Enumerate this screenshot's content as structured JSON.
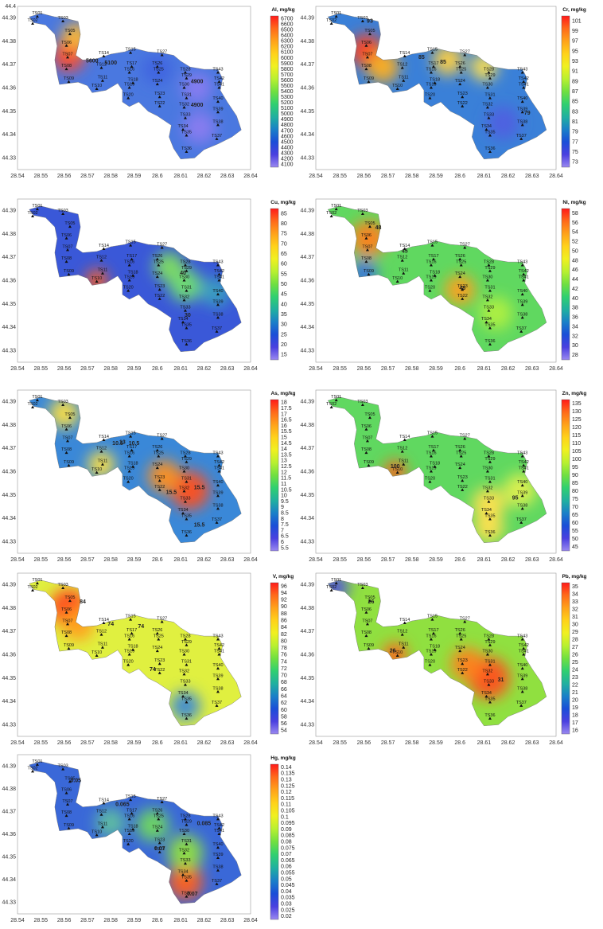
{
  "axes": {
    "x_ticks": [
      "28.54",
      "28.55",
      "28.56",
      "28.57",
      "28.58",
      "28.59",
      "28.6",
      "28.61",
      "28.62",
      "28.63",
      "28.64"
    ],
    "y_ticks": [
      "44.39",
      "44.38",
      "44.37",
      "44.36",
      "44.35",
      "44.34",
      "44.33"
    ],
    "y_top_label": "44.4"
  },
  "sites": [
    {
      "id": "TS01",
      "lon": 28.5485,
      "lat": 44.3905
    },
    {
      "id": "TS02",
      "lon": 28.5465,
      "lat": 44.3875
    },
    {
      "id": "TS03",
      "lon": 28.5595,
      "lat": 44.3885
    },
    {
      "id": "TS05",
      "lon": 28.5625,
      "lat": 44.383
    },
    {
      "id": "TS06",
      "lon": 28.561,
      "lat": 44.378
    },
    {
      "id": "TS07",
      "lon": 28.5615,
      "lat": 44.373
    },
    {
      "id": "TS08",
      "lon": 28.561,
      "lat": 44.368
    },
    {
      "id": "TS09",
      "lon": 28.562,
      "lat": 44.3625
    },
    {
      "id": "TS10",
      "lon": 28.574,
      "lat": 44.3595
    },
    {
      "id": "TS11",
      "lon": 28.5765,
      "lat": 44.363
    },
    {
      "id": "TS12",
      "lon": 28.576,
      "lat": 44.3685
    },
    {
      "id": "TS14",
      "lon": 28.577,
      "lat": 44.3735
    },
    {
      "id": "TS15",
      "lon": 28.5885,
      "lat": 44.375
    },
    {
      "id": "TS16",
      "lon": 28.588,
      "lat": 44.3665
    },
    {
      "id": "TS17",
      "lon": 28.589,
      "lat": 44.369
    },
    {
      "id": "TS18",
      "lon": 28.5895,
      "lat": 44.362
    },
    {
      "id": "TS19",
      "lon": 28.588,
      "lat": 44.36
    },
    {
      "id": "TS20",
      "lon": 28.5875,
      "lat": 44.3555
    },
    {
      "id": "TS22",
      "lon": 28.601,
      "lat": 44.352
    },
    {
      "id": "TS23",
      "lon": 28.601,
      "lat": 44.356
    },
    {
      "id": "TS24",
      "lon": 28.6,
      "lat": 44.3615
    },
    {
      "id": "TS25",
      "lon": 28.6005,
      "lat": 44.3665
    },
    {
      "id": "TS26",
      "lon": 28.6,
      "lat": 44.369
    },
    {
      "id": "TS27",
      "lon": 28.602,
      "lat": 44.374
    },
    {
      "id": "TS28",
      "lon": 28.612,
      "lat": 44.3665
    },
    {
      "id": "TS29",
      "lon": 28.6125,
      "lat": 44.364
    },
    {
      "id": "TS30",
      "lon": 28.6115,
      "lat": 44.36
    },
    {
      "id": "TS31",
      "lon": 28.6125,
      "lat": 44.3555
    },
    {
      "id": "TS32",
      "lon": 28.6115,
      "lat": 44.3515
    },
    {
      "id": "TS33",
      "lon": 28.612,
      "lat": 44.347
    },
    {
      "id": "TS34",
      "lon": 28.611,
      "lat": 44.342
    },
    {
      "id": "TS35",
      "lon": 28.6125,
      "lat": 44.3395
    },
    {
      "id": "TS36",
      "lon": 28.6125,
      "lat": 44.3325
    },
    {
      "id": "TS37",
      "lon": 28.6255,
      "lat": 44.338
    },
    {
      "id": "TS38",
      "lon": 28.626,
      "lat": 44.344
    },
    {
      "id": "TS39",
      "lon": 28.626,
      "lat": 44.3495
    },
    {
      "id": "TS40",
      "lon": 28.626,
      "lat": 44.354
    },
    {
      "id": "TS41",
      "lon": 28.6265,
      "lat": 44.36
    },
    {
      "id": "TS42",
      "lon": 28.6265,
      "lat": 44.3625
    },
    {
      "id": "TS43",
      "lon": 28.626,
      "lat": 44.3665
    }
  ],
  "maps": [
    {
      "key": "al",
      "title": "Al, mg/kg",
      "legend": [
        "6700",
        "6600",
        "6500",
        "6400",
        "6300",
        "6200",
        "6100",
        "6000",
        "5900",
        "5800",
        "5700",
        "5600",
        "5500",
        "5400",
        "5300",
        "5200",
        "5100",
        "5000",
        "4900",
        "4800",
        "4700",
        "4600",
        "4500",
        "4400",
        "4300",
        "4200",
        "4100"
      ],
      "contours": [
        {
          "t": "5600",
          "lon": 28.572,
          "lat": 44.371
        },
        {
          "t": "5100",
          "lon": 28.58,
          "lat": 44.37
        },
        {
          "t": "4900",
          "lon": 28.617,
          "lat": 44.362
        },
        {
          "t": "4900",
          "lon": 28.617,
          "lat": 44.352
        }
      ],
      "hotspots": [
        {
          "lon": 28.562,
          "lat": 44.374,
          "r": 0.3,
          "c": "#ff4a2a"
        },
        {
          "lon": 28.565,
          "lat": 44.382,
          "r": 0.22,
          "c": "#ffb830"
        },
        {
          "lon": 28.617,
          "lat": 44.36,
          "r": 0.25,
          "c": "#8a7cf0"
        },
        {
          "lon": 28.618,
          "lat": 44.343,
          "r": 0.3,
          "c": "#8a7cf0"
        },
        {
          "lon": 28.6,
          "lat": 44.368,
          "r": 0.25,
          "c": "#3f63e0"
        }
      ],
      "base": "#4a78e0"
    },
    {
      "key": "cr",
      "title": "Cr, mg/kg",
      "legend": [
        "101",
        "99",
        "97",
        "95",
        "93",
        "91",
        "89",
        "87",
        "85",
        "83",
        "81",
        "79",
        "77",
        "75",
        "73"
      ],
      "contours": [
        {
          "t": "93",
          "lon": 28.5625,
          "lat": 44.388
        },
        {
          "t": "85",
          "lon": 28.584,
          "lat": 44.3725
        },
        {
          "t": "85",
          "lon": 28.593,
          "lat": 44.3705
        },
        {
          "t": "79",
          "lon": 28.628,
          "lat": 44.3485
        }
      ],
      "hotspots": [
        {
          "lon": 28.561,
          "lat": 44.376,
          "r": 0.3,
          "c": "#ff4020"
        },
        {
          "lon": 28.568,
          "lat": 44.369,
          "r": 0.28,
          "c": "#ffb020"
        },
        {
          "lon": 28.595,
          "lat": 44.372,
          "r": 0.25,
          "c": "#ffd040"
        },
        {
          "lon": 28.61,
          "lat": 44.369,
          "r": 0.2,
          "c": "#ffe050"
        },
        {
          "lon": 28.618,
          "lat": 44.345,
          "r": 0.3,
          "c": "#5060e0"
        }
      ],
      "base": "#3a80d8"
    },
    {
      "key": "cu",
      "title": "Cu, mg/kg",
      "legend": [
        "85",
        "80",
        "75",
        "70",
        "65",
        "60",
        "55",
        "50",
        "45",
        "40",
        "35",
        "30",
        "25",
        "20",
        "15"
      ],
      "contours": [
        {
          "t": "40",
          "lon": 28.611,
          "lat": 44.3625
        },
        {
          "t": "30",
          "lon": 28.613,
          "lat": 44.3445
        }
      ],
      "hotspots": [
        {
          "lon": 28.574,
          "lat": 44.36,
          "r": 0.12,
          "c": "#ff6020"
        },
        {
          "lon": 28.612,
          "lat": 44.358,
          "r": 0.3,
          "c": "#70e070"
        },
        {
          "lon": 28.605,
          "lat": 44.366,
          "r": 0.25,
          "c": "#80e060"
        },
        {
          "lon": 28.625,
          "lat": 44.355,
          "r": 0.25,
          "c": "#3aa0c0"
        }
      ],
      "base": "#3a58d8"
    },
    {
      "key": "ni",
      "title": "Ni, mg/kg",
      "legend": [
        "58",
        "56",
        "54",
        "52",
        "50",
        "48",
        "46",
        "44",
        "42",
        "40",
        "38",
        "36",
        "34",
        "32",
        "30",
        "28"
      ],
      "contours": [
        {
          "t": "48",
          "lon": 28.566,
          "lat": 44.382
        },
        {
          "t": "48",
          "lon": 28.601,
          "lat": 44.356
        },
        {
          "t": "45",
          "lon": 28.577,
          "lat": 44.372
        }
      ],
      "hotspots": [
        {
          "lon": 28.562,
          "lat": 44.378,
          "r": 0.35,
          "c": "#ff8020"
        },
        {
          "lon": 28.6,
          "lat": 44.356,
          "r": 0.25,
          "c": "#ffa020"
        },
        {
          "lon": 28.615,
          "lat": 44.346,
          "r": 0.3,
          "c": "#b0f040"
        },
        {
          "lon": 28.56,
          "lat": 44.363,
          "r": 0.2,
          "c": "#3a70e0"
        }
      ],
      "base": "#60d860"
    },
    {
      "key": "as",
      "title": "As, mg/kg",
      "legend": [
        "18",
        "17.5",
        "17",
        "16.5",
        "16",
        "15.5",
        "15",
        "14.5",
        "14",
        "13.5",
        "13",
        "12.5",
        "12",
        "11.5",
        "11",
        "10.5",
        "10",
        "9.5",
        "9",
        "8.5",
        "8",
        "7.5",
        "7",
        "6.5",
        "6",
        "5.5"
      ],
      "contours": [
        {
          "t": "13",
          "lon": 28.585,
          "lat": 44.372
        },
        {
          "t": "10.5",
          "lon": 28.583,
          "lat": 44.3715
        },
        {
          "t": "10.5",
          "lon": 28.59,
          "lat": 44.3715
        },
        {
          "t": "15.5",
          "lon": 28.606,
          "lat": 44.3505
        },
        {
          "t": "15.5",
          "lon": 28.618,
          "lat": 44.3525
        },
        {
          "t": "15.5",
          "lon": 28.618,
          "lat": 44.3365
        }
      ],
      "hotspots": [
        {
          "lon": 28.614,
          "lat": 44.352,
          "r": 0.4,
          "c": "#ff5020"
        },
        {
          "lon": 28.603,
          "lat": 44.358,
          "r": 0.3,
          "c": "#ff9020"
        },
        {
          "lon": 28.56,
          "lat": 44.385,
          "r": 0.25,
          "c": "#ffe040"
        },
        {
          "lon": 28.576,
          "lat": 44.363,
          "r": 0.2,
          "c": "#ffe040"
        }
      ],
      "base": "#3a88d8"
    },
    {
      "key": "zn",
      "title": "Zn, mg/kg",
      "legend": [
        "135",
        "130",
        "125",
        "120",
        "115",
        "110",
        "105",
        "100",
        "95",
        "90",
        "85",
        "80",
        "75",
        "70",
        "65",
        "60",
        "55",
        "50",
        "45"
      ],
      "contours": [
        {
          "t": "100",
          "lon": 28.573,
          "lat": 44.3615
        },
        {
          "t": "95",
          "lon": 28.623,
          "lat": 44.348
        }
      ],
      "hotspots": [
        {
          "lon": 28.573,
          "lat": 44.36,
          "r": 0.12,
          "c": "#ff6020"
        },
        {
          "lon": 28.612,
          "lat": 44.346,
          "r": 0.3,
          "c": "#ffe050"
        },
        {
          "lon": 28.625,
          "lat": 44.352,
          "r": 0.3,
          "c": "#e0f050"
        },
        {
          "lon": 28.612,
          "lat": 44.336,
          "r": 0.25,
          "c": "#ffe050"
        }
      ],
      "base": "#60d860"
    },
    {
      "key": "v",
      "title": "V, mg/kg",
      "legend": [
        "96",
        "94",
        "92",
        "90",
        "88",
        "86",
        "84",
        "82",
        "80",
        "78",
        "76",
        "74",
        "72",
        "70",
        "68",
        "66",
        "64",
        "62",
        "60",
        "58",
        "56",
        "54"
      ],
      "contours": [
        {
          "t": "84",
          "lon": 28.568,
          "lat": 44.382
        },
        {
          "t": "74",
          "lon": 28.58,
          "lat": 44.3725
        },
        {
          "t": "74",
          "lon": 28.593,
          "lat": 44.3715
        },
        {
          "t": "74",
          "lon": 28.598,
          "lat": 44.353
        }
      ],
      "hotspots": [
        {
          "lon": 28.562,
          "lat": 44.38,
          "r": 0.4,
          "c": "#ff4020"
        },
        {
          "lon": 28.566,
          "lat": 44.373,
          "r": 0.3,
          "c": "#ffa020"
        },
        {
          "lon": 28.612,
          "lat": 44.338,
          "r": 0.25,
          "c": "#3a88d8"
        }
      ],
      "base": "#e0f040"
    },
    {
      "key": "pb",
      "title": "Pb, mg/kg",
      "legend": [
        "35",
        "34",
        "33",
        "32",
        "31",
        "30",
        "29",
        "28",
        "27",
        "26",
        "25",
        "24",
        "23",
        "22",
        "21",
        "20",
        "19",
        "18",
        "17",
        "16"
      ],
      "contours": [
        {
          "t": "26",
          "lon": 28.563,
          "lat": 44.382
        },
        {
          "t": "26",
          "lon": 28.572,
          "lat": 44.361
        },
        {
          "t": "31",
          "lon": 28.617,
          "lat": 44.3485
        }
      ],
      "hotspots": [
        {
          "lon": 28.612,
          "lat": 44.35,
          "r": 0.45,
          "c": "#ff5020"
        },
        {
          "lon": 28.603,
          "lat": 44.356,
          "r": 0.3,
          "c": "#ff8020"
        },
        {
          "lon": 28.573,
          "lat": 44.36,
          "r": 0.15,
          "c": "#ff6020"
        },
        {
          "lon": 28.548,
          "lat": 44.389,
          "r": 0.2,
          "c": "#5050e0"
        }
      ],
      "base": "#90e040"
    },
    {
      "key": "hg",
      "title": "Hg, mg/kg",
      "legend": [
        "0.14",
        "0.135",
        "0.13",
        "0.125",
        "0.12",
        "0.115",
        "0.11",
        "0.105",
        "0.1",
        "0.095",
        "0.09",
        "0.085",
        "0.08",
        "0.075",
        "0.07",
        "0.065",
        "0.06",
        "0.055",
        "0.05",
        "0.045",
        "0.04",
        "0.035",
        "0.03",
        "0.025",
        "0.02"
      ],
      "contours": [
        {
          "t": "0.05",
          "lon": 28.565,
          "lat": 44.383
        },
        {
          "t": "0.065",
          "lon": 28.585,
          "lat": 44.3725
        },
        {
          "t": "0.07",
          "lon": 28.601,
          "lat": 44.353
        },
        {
          "t": "0.085",
          "lon": 28.62,
          "lat": 44.364
        },
        {
          "t": "0.07",
          "lon": 28.615,
          "lat": 44.333
        }
      ],
      "hotspots": [
        {
          "lon": 28.612,
          "lat": 44.339,
          "r": 0.35,
          "c": "#ff6020"
        },
        {
          "lon": 28.612,
          "lat": 44.352,
          "r": 0.35,
          "c": "#90e040"
        },
        {
          "lon": 28.598,
          "lat": 44.364,
          "r": 0.3,
          "c": "#70d860"
        },
        {
          "lon": 28.58,
          "lat": 44.365,
          "r": 0.25,
          "c": "#60c0a0"
        }
      ],
      "base": "#3a68d8"
    }
  ]
}
